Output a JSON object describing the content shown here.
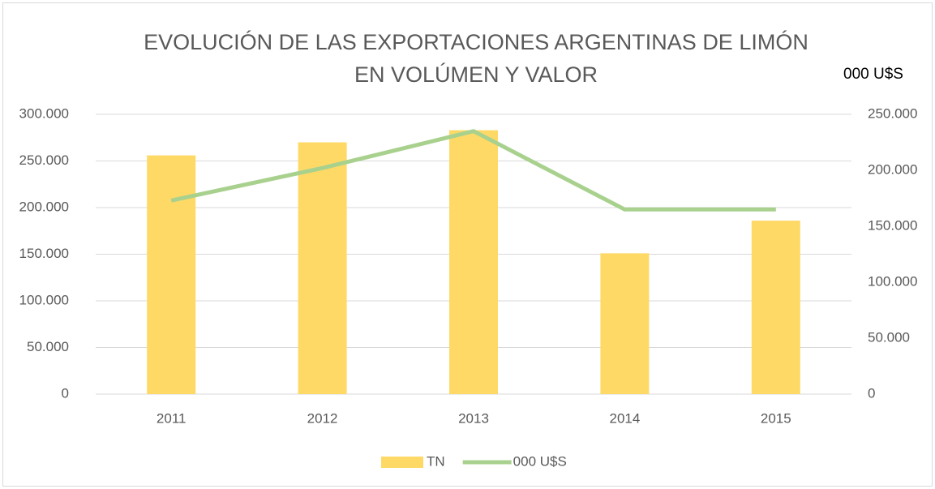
{
  "chart_data": {
    "type": "bar_line",
    "title": "EVOLUCIÓN DE LAS EXPORTACIONES ARGENTINAS DE LIMÓN EN VOLÚMEN Y VALOR",
    "y2_label": "000 U$S",
    "categories": [
      "2011",
      "2012",
      "2013",
      "2014",
      "2015"
    ],
    "series": [
      {
        "name": "TN",
        "color": "#ffd966",
        "type": "bar",
        "values": [
          256000,
          270000,
          283000,
          151000,
          186000
        ]
      },
      {
        "name": "000 U$S",
        "color": "#a9d18e",
        "type": "line",
        "axis": "y2",
        "values": [
          173000,
          202000,
          235000,
          165000,
          165000
        ]
      }
    ],
    "ylim": [
      0,
      300000
    ],
    "yticks": [
      0,
      {
        "value": 50000,
        "label": "50.000"
      },
      {
        "value": 100000,
        "label": "100.000"
      },
      {
        "value": 150000,
        "label": "150.000"
      },
      {
        "value": 200000,
        "label": "200.000"
      },
      {
        "value": 250000,
        "label": "250.000"
      },
      {
        "value": 300000,
        "label": "300.000"
      }
    ],
    "y2lim": [
      0,
      250000
    ],
    "y2ticks": [
      0,
      {
        "value": 50000,
        "label": "50.000"
      },
      {
        "value": 100000,
        "label": "100.000"
      },
      {
        "value": 150000,
        "label": "150.000"
      },
      {
        "value": 200000,
        "label": "200.000"
      },
      {
        "value": 250000,
        "label": "250.000"
      }
    ],
    "grid": true,
    "legend": "bottom"
  }
}
